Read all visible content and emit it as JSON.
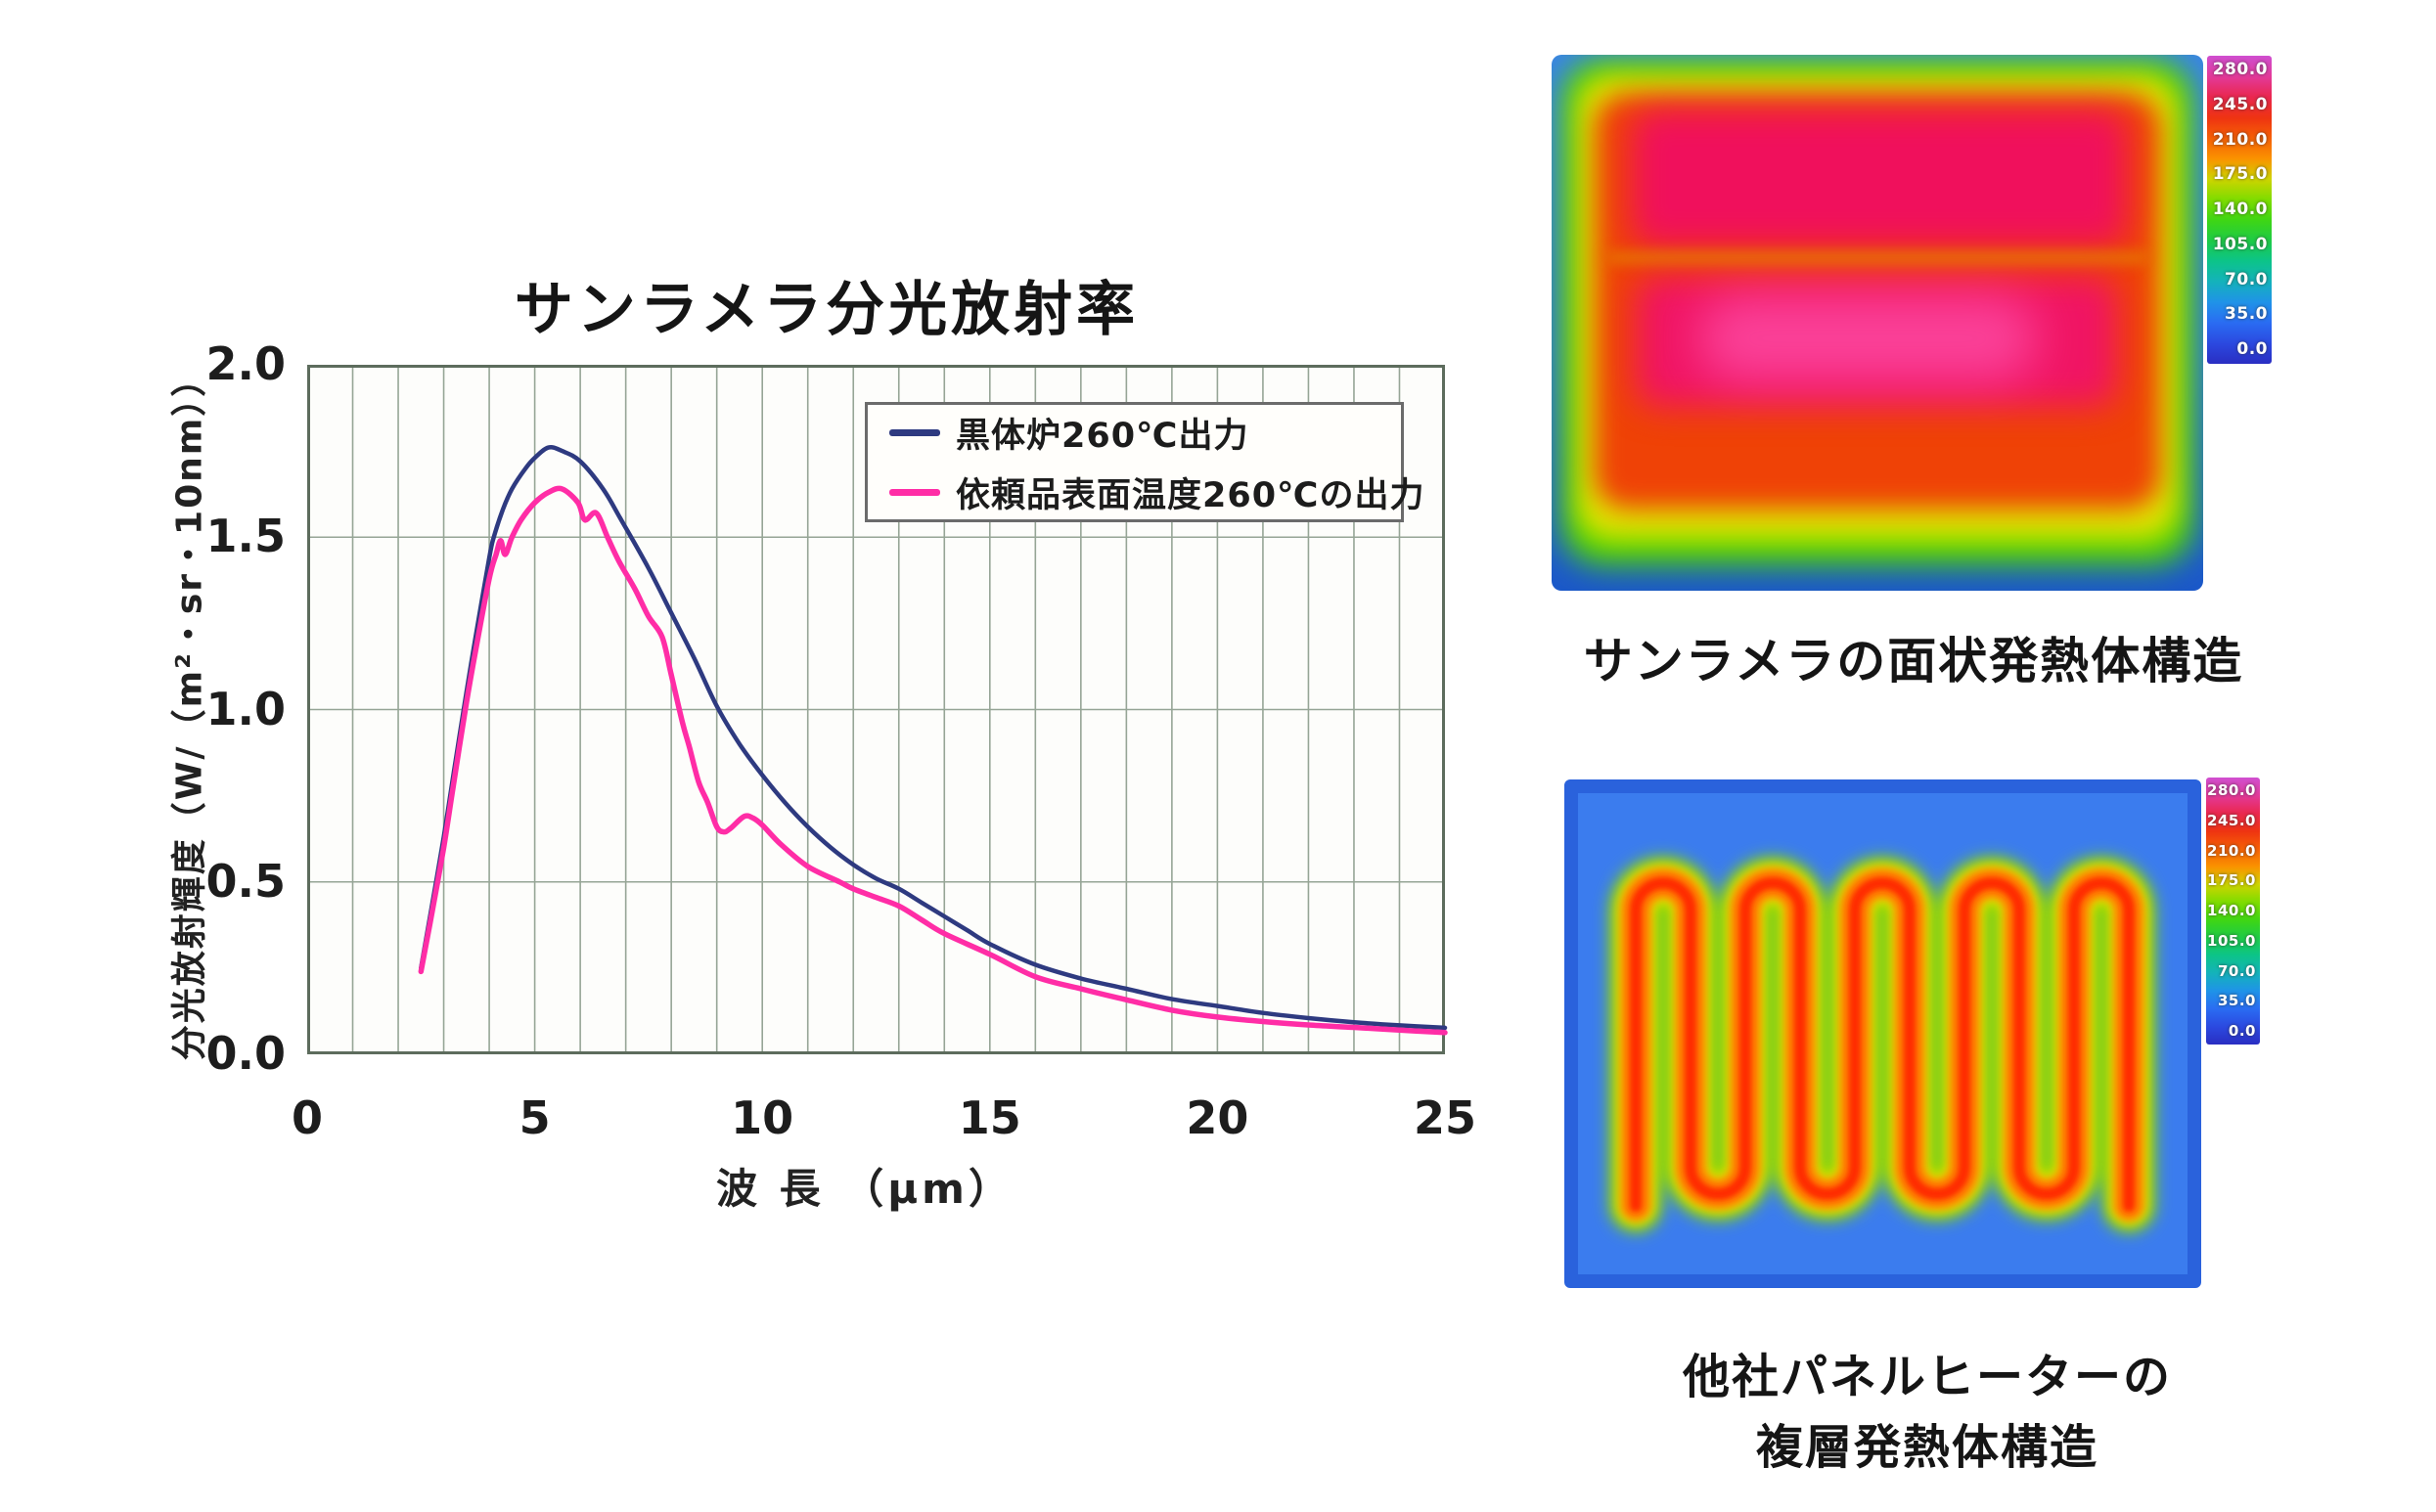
{
  "figure": {
    "chart": {
      "title": "サンラメラ分光放射率",
      "y_tick_labels": [
        "2.0",
        "1.5",
        "1.0",
        "0.5",
        "0.0"
      ],
      "x_tick_labels": [
        "0",
        "5",
        "10",
        "15",
        "20",
        "25"
      ],
      "x_axis_label": "波 長 （μm）",
      "y_axis_label": "分光放射輝度（W/（m²・sr・10nm））"
    },
    "thermal_top": {
      "caption": "サンラメラの面状発熱体構造",
      "scale_labels": [
        "280.0",
        "245.0",
        "210.0",
        "175.0",
        "140.0",
        "105.0",
        "70.0",
        "35.0",
        "0.0"
      ]
    },
    "thermal_bottom": {
      "caption_line1": "他社パネルヒーターの",
      "caption_line2": "複層発熱体構造",
      "scale_labels": [
        "280.0",
        "245.0",
        "210.0",
        "175.0",
        "140.0",
        "105.0",
        "70.0",
        "35.0",
        "0.0"
      ]
    },
    "thermal_scale_colors": [
      "#cf4fd0",
      "#e23a9a",
      "#ea2750",
      "#ee3312",
      "#f55f06",
      "#fa9200",
      "#cfd400",
      "#7fdc00",
      "#3fd614",
      "#1ecb46",
      "#0cc489",
      "#14b2bb",
      "#1f93e8",
      "#2a6cf2",
      "#2b49e0",
      "#2a2ec2"
    ]
  },
  "chart_data": {
    "type": "line",
    "title": "サンラメラ分光放射率",
    "xlabel": "波 長 （μm）",
    "ylabel": "分光放射輝度（W/（m²・sr・10nm））",
    "xlim": [
      0,
      25
    ],
    "ylim": [
      0,
      2.0
    ],
    "x_ticks": [
      0,
      5,
      10,
      15,
      20,
      25
    ],
    "y_ticks": [
      0.0,
      0.5,
      1.0,
      1.5,
      2.0
    ],
    "x_minor_step": 1,
    "grid": "on",
    "grid_color": "#96a596",
    "legend_position": "upper right",
    "series": [
      {
        "name": "黒体炉260℃出力",
        "color": "#2e3a80",
        "points": [
          [
            2.5,
            0.25
          ],
          [
            2.7,
            0.4
          ],
          [
            3.0,
            0.63
          ],
          [
            3.2,
            0.8
          ],
          [
            3.5,
            1.05
          ],
          [
            3.7,
            1.21
          ],
          [
            4.0,
            1.44
          ],
          [
            4.1,
            1.5
          ],
          [
            4.3,
            1.58
          ],
          [
            4.5,
            1.64
          ],
          [
            4.8,
            1.7
          ],
          [
            5.0,
            1.73
          ],
          [
            5.3,
            1.76
          ],
          [
            5.6,
            1.75
          ],
          [
            6.0,
            1.72
          ],
          [
            6.5,
            1.64
          ],
          [
            6.9,
            1.55
          ],
          [
            7.5,
            1.41
          ],
          [
            8.0,
            1.28
          ],
          [
            8.5,
            1.15
          ],
          [
            9.0,
            1.01
          ],
          [
            9.5,
            0.9
          ],
          [
            10.0,
            0.81
          ],
          [
            10.5,
            0.73
          ],
          [
            11.0,
            0.66
          ],
          [
            11.5,
            0.6
          ],
          [
            12.0,
            0.55
          ],
          [
            12.5,
            0.51
          ],
          [
            13.0,
            0.48
          ],
          [
            13.5,
            0.44
          ],
          [
            14.0,
            0.4
          ],
          [
            14.5,
            0.36
          ],
          [
            15.0,
            0.32
          ],
          [
            16.0,
            0.26
          ],
          [
            17.0,
            0.22
          ],
          [
            18.0,
            0.19
          ],
          [
            19.0,
            0.16
          ],
          [
            20.0,
            0.14
          ],
          [
            21.0,
            0.12
          ],
          [
            22.0,
            0.105
          ],
          [
            23.0,
            0.093
          ],
          [
            24.0,
            0.084
          ],
          [
            25.0,
            0.077
          ]
        ]
      },
      {
        "name": "依頼品表面温度260℃の出力",
        "color": "#ff2da6",
        "points": [
          [
            2.5,
            0.24
          ],
          [
            2.7,
            0.38
          ],
          [
            3.0,
            0.6
          ],
          [
            3.2,
            0.77
          ],
          [
            3.5,
            1.02
          ],
          [
            3.7,
            1.17
          ],
          [
            4.0,
            1.38
          ],
          [
            4.15,
            1.45
          ],
          [
            4.25,
            1.49
          ],
          [
            4.35,
            1.45
          ],
          [
            4.5,
            1.5
          ],
          [
            4.7,
            1.55
          ],
          [
            5.0,
            1.6
          ],
          [
            5.3,
            1.63
          ],
          [
            5.6,
            1.64
          ],
          [
            5.95,
            1.6
          ],
          [
            6.1,
            1.55
          ],
          [
            6.35,
            1.57
          ],
          [
            6.6,
            1.5
          ],
          [
            6.85,
            1.43
          ],
          [
            7.2,
            1.35
          ],
          [
            7.5,
            1.27
          ],
          [
            7.8,
            1.21
          ],
          [
            8.0,
            1.1
          ],
          [
            8.25,
            0.96
          ],
          [
            8.4,
            0.89
          ],
          [
            8.6,
            0.79
          ],
          [
            8.8,
            0.73
          ],
          [
            9.0,
            0.66
          ],
          [
            9.15,
            0.645
          ],
          [
            9.3,
            0.655
          ],
          [
            9.6,
            0.69
          ],
          [
            9.8,
            0.685
          ],
          [
            10.0,
            0.665
          ],
          [
            10.4,
            0.61
          ],
          [
            11.0,
            0.545
          ],
          [
            11.7,
            0.5
          ],
          [
            12.0,
            0.48
          ],
          [
            12.5,
            0.455
          ],
          [
            13.0,
            0.43
          ],
          [
            13.5,
            0.39
          ],
          [
            14.0,
            0.35
          ],
          [
            15.0,
            0.29
          ],
          [
            16.0,
            0.225
          ],
          [
            17.0,
            0.19
          ],
          [
            18.0,
            0.158
          ],
          [
            19.0,
            0.128
          ],
          [
            20.0,
            0.108
          ],
          [
            21.0,
            0.095
          ],
          [
            22.0,
            0.085
          ],
          [
            23.0,
            0.078
          ],
          [
            24.0,
            0.07
          ],
          [
            25.0,
            0.063
          ]
        ]
      }
    ]
  }
}
